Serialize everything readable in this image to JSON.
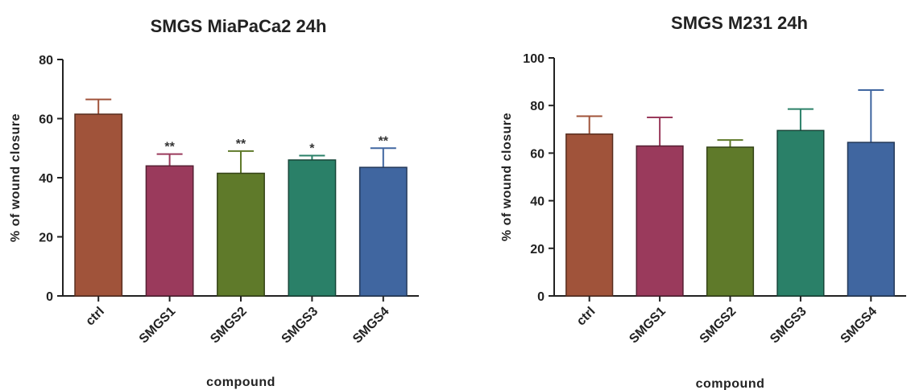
{
  "chart_data": [
    {
      "type": "bar",
      "title": "SMGS MiaPaCa2 24h",
      "xlabel": "compound",
      "ylabel": "% of wound closure",
      "ylim": [
        0,
        80
      ],
      "yticks": [
        0,
        20,
        40,
        60,
        80
      ],
      "categories": [
        "ctrl",
        "SMGS1",
        "SMGS2",
        "SMGS3",
        "SMGS4"
      ],
      "values": [
        61.5,
        44,
        41.5,
        46,
        43.5
      ],
      "errors": [
        5,
        4,
        7.5,
        1.5,
        6.5
      ],
      "significance": [
        "",
        "**",
        "**",
        "*",
        "**"
      ],
      "colors": [
        "#a0533a",
        "#9a3a5c",
        "#5f7a2a",
        "#2a8068",
        "#4066a0"
      ]
    },
    {
      "type": "bar",
      "title": "SMGS M231 24h",
      "xlabel": "compound",
      "ylabel": "% of wound closure",
      "ylim": [
        0,
        100
      ],
      "yticks": [
        0,
        20,
        40,
        60,
        80,
        100
      ],
      "categories": [
        "ctrl",
        "SMGS1",
        "SMGS2",
        "SMGS3",
        "SMGS4"
      ],
      "values": [
        68,
        63,
        62.5,
        69.5,
        64.5
      ],
      "errors": [
        7.5,
        12,
        3,
        9,
        22
      ],
      "significance": [
        "",
        "",
        "",
        "",
        ""
      ],
      "colors": [
        "#a0533a",
        "#9a3a5c",
        "#5f7a2a",
        "#2a8068",
        "#4066a0"
      ]
    }
  ]
}
